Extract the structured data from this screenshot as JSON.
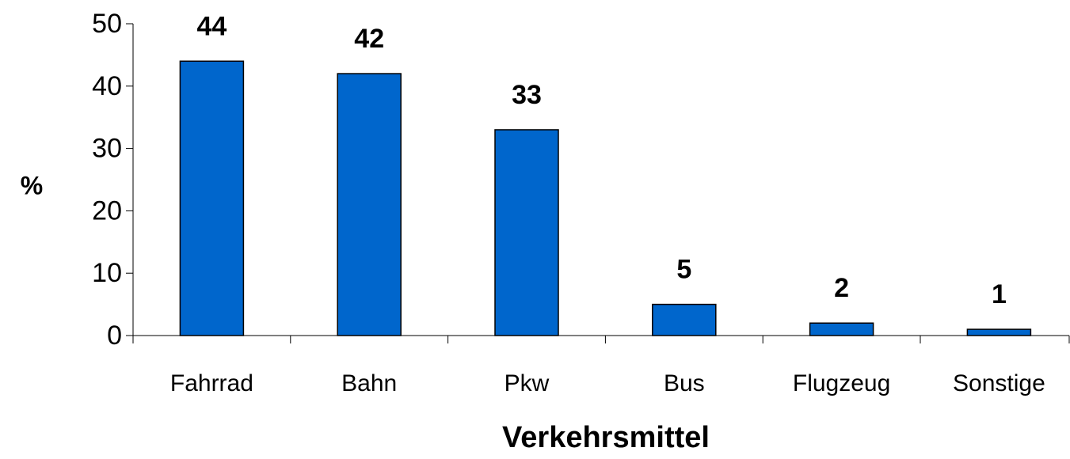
{
  "chart_data": {
    "type": "bar",
    "x_label": "Verkehrsmittel",
    "y_label": "%",
    "categories": [
      "Fahrrad",
      "Bahn",
      "Pkw",
      "Bus",
      "Flugzeug",
      "Sonstige"
    ],
    "values": [
      44,
      42,
      33,
      5,
      2,
      1
    ],
    "color": "#0066cc",
    "ylim": [
      0,
      50
    ],
    "yticks": [
      0,
      10,
      20,
      30,
      40,
      50
    ],
    "grid": false
  }
}
